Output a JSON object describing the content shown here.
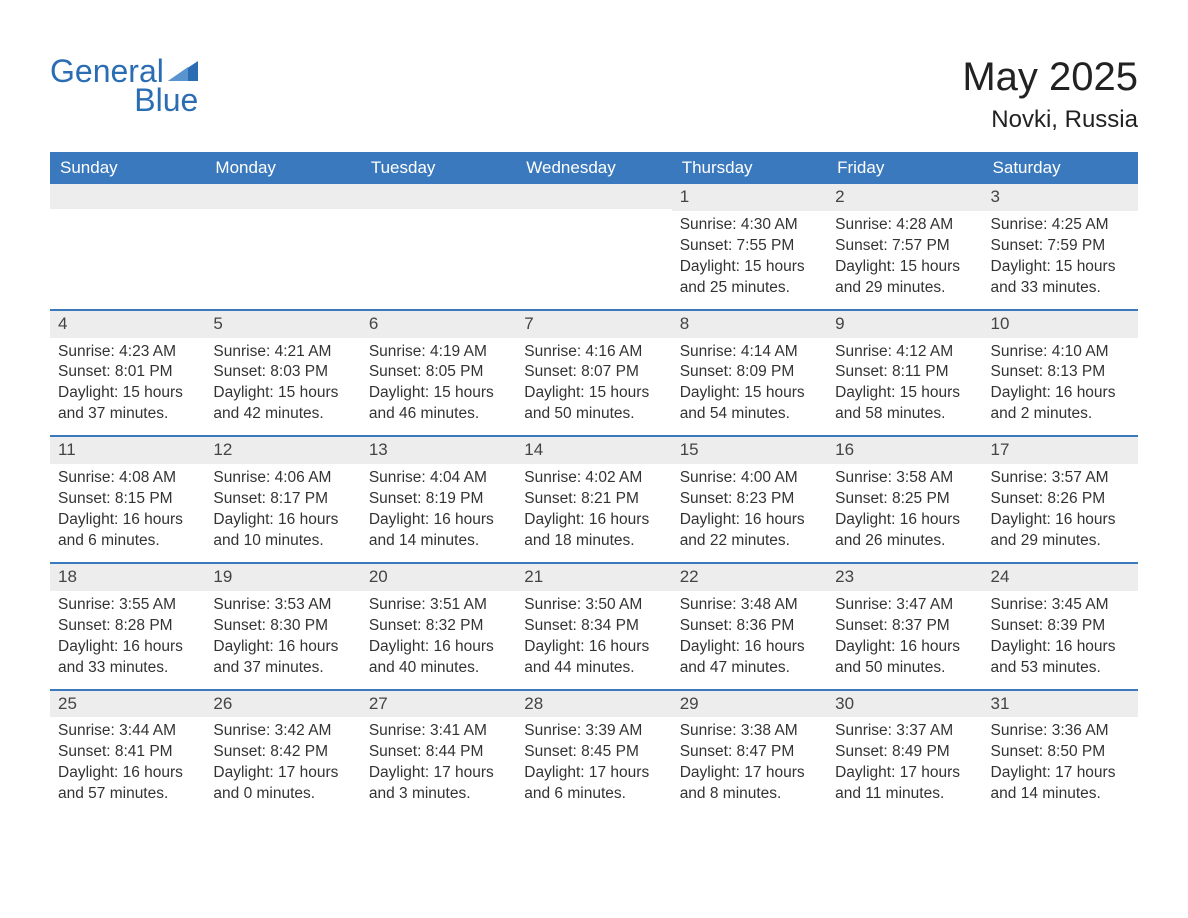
{
  "brand": {
    "general": "General",
    "blue": "Blue"
  },
  "title": "May 2025",
  "location": "Novki, Russia",
  "colors": {
    "header_bg": "#3a79bd",
    "header_text": "#ffffff",
    "daynum_bg": "#ededed",
    "week_border": "#3a79bd",
    "text": "#333333",
    "brand": "#2a6db3"
  },
  "weekdays": [
    "Sunday",
    "Monday",
    "Tuesday",
    "Wednesday",
    "Thursday",
    "Friday",
    "Saturday"
  ],
  "weeks": [
    [
      null,
      null,
      null,
      null,
      {
        "n": "1",
        "sr": "Sunrise: 4:30 AM",
        "ss": "Sunset: 7:55 PM",
        "dl": "Daylight: 15 hours and 25 minutes."
      },
      {
        "n": "2",
        "sr": "Sunrise: 4:28 AM",
        "ss": "Sunset: 7:57 PM",
        "dl": "Daylight: 15 hours and 29 minutes."
      },
      {
        "n": "3",
        "sr": "Sunrise: 4:25 AM",
        "ss": "Sunset: 7:59 PM",
        "dl": "Daylight: 15 hours and 33 minutes."
      }
    ],
    [
      {
        "n": "4",
        "sr": "Sunrise: 4:23 AM",
        "ss": "Sunset: 8:01 PM",
        "dl": "Daylight: 15 hours and 37 minutes."
      },
      {
        "n": "5",
        "sr": "Sunrise: 4:21 AM",
        "ss": "Sunset: 8:03 PM",
        "dl": "Daylight: 15 hours and 42 minutes."
      },
      {
        "n": "6",
        "sr": "Sunrise: 4:19 AM",
        "ss": "Sunset: 8:05 PM",
        "dl": "Daylight: 15 hours and 46 minutes."
      },
      {
        "n": "7",
        "sr": "Sunrise: 4:16 AM",
        "ss": "Sunset: 8:07 PM",
        "dl": "Daylight: 15 hours and 50 minutes."
      },
      {
        "n": "8",
        "sr": "Sunrise: 4:14 AM",
        "ss": "Sunset: 8:09 PM",
        "dl": "Daylight: 15 hours and 54 minutes."
      },
      {
        "n": "9",
        "sr": "Sunrise: 4:12 AM",
        "ss": "Sunset: 8:11 PM",
        "dl": "Daylight: 15 hours and 58 minutes."
      },
      {
        "n": "10",
        "sr": "Sunrise: 4:10 AM",
        "ss": "Sunset: 8:13 PM",
        "dl": "Daylight: 16 hours and 2 minutes."
      }
    ],
    [
      {
        "n": "11",
        "sr": "Sunrise: 4:08 AM",
        "ss": "Sunset: 8:15 PM",
        "dl": "Daylight: 16 hours and 6 minutes."
      },
      {
        "n": "12",
        "sr": "Sunrise: 4:06 AM",
        "ss": "Sunset: 8:17 PM",
        "dl": "Daylight: 16 hours and 10 minutes."
      },
      {
        "n": "13",
        "sr": "Sunrise: 4:04 AM",
        "ss": "Sunset: 8:19 PM",
        "dl": "Daylight: 16 hours and 14 minutes."
      },
      {
        "n": "14",
        "sr": "Sunrise: 4:02 AM",
        "ss": "Sunset: 8:21 PM",
        "dl": "Daylight: 16 hours and 18 minutes."
      },
      {
        "n": "15",
        "sr": "Sunrise: 4:00 AM",
        "ss": "Sunset: 8:23 PM",
        "dl": "Daylight: 16 hours and 22 minutes."
      },
      {
        "n": "16",
        "sr": "Sunrise: 3:58 AM",
        "ss": "Sunset: 8:25 PM",
        "dl": "Daylight: 16 hours and 26 minutes."
      },
      {
        "n": "17",
        "sr": "Sunrise: 3:57 AM",
        "ss": "Sunset: 8:26 PM",
        "dl": "Daylight: 16 hours and 29 minutes."
      }
    ],
    [
      {
        "n": "18",
        "sr": "Sunrise: 3:55 AM",
        "ss": "Sunset: 8:28 PM",
        "dl": "Daylight: 16 hours and 33 minutes."
      },
      {
        "n": "19",
        "sr": "Sunrise: 3:53 AM",
        "ss": "Sunset: 8:30 PM",
        "dl": "Daylight: 16 hours and 37 minutes."
      },
      {
        "n": "20",
        "sr": "Sunrise: 3:51 AM",
        "ss": "Sunset: 8:32 PM",
        "dl": "Daylight: 16 hours and 40 minutes."
      },
      {
        "n": "21",
        "sr": "Sunrise: 3:50 AM",
        "ss": "Sunset: 8:34 PM",
        "dl": "Daylight: 16 hours and 44 minutes."
      },
      {
        "n": "22",
        "sr": "Sunrise: 3:48 AM",
        "ss": "Sunset: 8:36 PM",
        "dl": "Daylight: 16 hours and 47 minutes."
      },
      {
        "n": "23",
        "sr": "Sunrise: 3:47 AM",
        "ss": "Sunset: 8:37 PM",
        "dl": "Daylight: 16 hours and 50 minutes."
      },
      {
        "n": "24",
        "sr": "Sunrise: 3:45 AM",
        "ss": "Sunset: 8:39 PM",
        "dl": "Daylight: 16 hours and 53 minutes."
      }
    ],
    [
      {
        "n": "25",
        "sr": "Sunrise: 3:44 AM",
        "ss": "Sunset: 8:41 PM",
        "dl": "Daylight: 16 hours and 57 minutes."
      },
      {
        "n": "26",
        "sr": "Sunrise: 3:42 AM",
        "ss": "Sunset: 8:42 PM",
        "dl": "Daylight: 17 hours and 0 minutes."
      },
      {
        "n": "27",
        "sr": "Sunrise: 3:41 AM",
        "ss": "Sunset: 8:44 PM",
        "dl": "Daylight: 17 hours and 3 minutes."
      },
      {
        "n": "28",
        "sr": "Sunrise: 3:39 AM",
        "ss": "Sunset: 8:45 PM",
        "dl": "Daylight: 17 hours and 6 minutes."
      },
      {
        "n": "29",
        "sr": "Sunrise: 3:38 AM",
        "ss": "Sunset: 8:47 PM",
        "dl": "Daylight: 17 hours and 8 minutes."
      },
      {
        "n": "30",
        "sr": "Sunrise: 3:37 AM",
        "ss": "Sunset: 8:49 PM",
        "dl": "Daylight: 17 hours and 11 minutes."
      },
      {
        "n": "31",
        "sr": "Sunrise: 3:36 AM",
        "ss": "Sunset: 8:50 PM",
        "dl": "Daylight: 17 hours and 14 minutes."
      }
    ]
  ]
}
